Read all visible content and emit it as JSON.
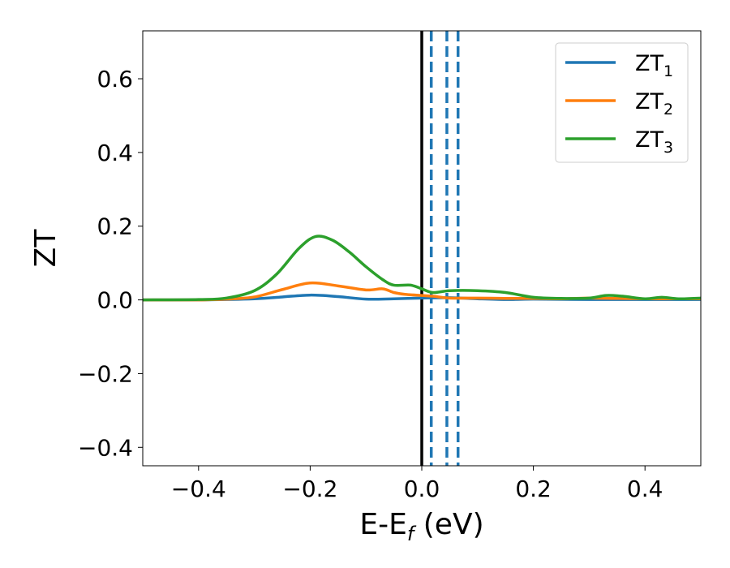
{
  "chart_data": {
    "type": "line",
    "xlabel": {
      "main": "E-E",
      "sub": "f",
      "suffix": " (eV)"
    },
    "ylabel": "ZT",
    "xlim": [
      -0.5,
      0.5
    ],
    "ylim": [
      -0.45,
      0.73
    ],
    "xticks": [
      -0.4,
      -0.2,
      0.0,
      0.2,
      0.4
    ],
    "xtick_labels": [
      "−0.4",
      "−0.2",
      "0.0",
      "0.2",
      "0.4"
    ],
    "yticks": [
      -0.4,
      -0.2,
      0.0,
      0.2,
      0.4,
      0.6
    ],
    "ytick_labels": [
      "−0.4",
      "−0.2",
      "0.0",
      "0.2",
      "0.4",
      "0.6"
    ],
    "grid": false,
    "legend_position": "top-right",
    "vlines": [
      {
        "x": 0.0,
        "style": "solid",
        "color": "#000000"
      },
      {
        "x": 0.017,
        "style": "dashed",
        "color": "#1f77b4"
      },
      {
        "x": 0.045,
        "style": "dashed",
        "color": "#1f77b4"
      },
      {
        "x": 0.065,
        "style": "dashed",
        "color": "#1f77b4"
      }
    ],
    "series": [
      {
        "name": "ZT",
        "name_sub": "1",
        "color": "#1f77b4",
        "x": [
          -0.5,
          -0.4,
          -0.3,
          -0.25,
          -0.2,
          -0.15,
          -0.1,
          -0.05,
          0.0,
          0.05,
          0.1,
          0.15,
          0.2,
          0.3,
          0.4,
          0.5
        ],
        "y": [
          0.0,
          0.0,
          0.003,
          0.008,
          0.013,
          0.009,
          0.002,
          0.003,
          0.005,
          0.006,
          0.003,
          0.001,
          0.002,
          0.001,
          0.001,
          0.001
        ]
      },
      {
        "name": "ZT",
        "name_sub": "2",
        "color": "#ff7f0e",
        "x": [
          -0.5,
          -0.4,
          -0.35,
          -0.3,
          -0.25,
          -0.2,
          -0.15,
          -0.1,
          -0.07,
          -0.05,
          -0.03,
          0.0,
          0.02,
          0.05,
          0.1,
          0.15,
          0.2,
          0.25,
          0.3,
          0.35,
          0.4,
          0.45,
          0.5
        ],
        "y": [
          0.0,
          0.0,
          0.002,
          0.008,
          0.028,
          0.046,
          0.038,
          0.027,
          0.03,
          0.02,
          0.015,
          0.012,
          0.01,
          0.005,
          0.005,
          0.004,
          0.004,
          0.003,
          0.005,
          0.004,
          0.003,
          0.003,
          0.003
        ]
      },
      {
        "name": "ZT",
        "name_sub": "3",
        "color": "#2ca02c",
        "x": [
          -0.5,
          -0.4,
          -0.35,
          -0.3,
          -0.26,
          -0.22,
          -0.19,
          -0.16,
          -0.13,
          -0.1,
          -0.07,
          -0.05,
          -0.02,
          0.0,
          0.02,
          0.05,
          0.1,
          0.15,
          0.2,
          0.25,
          0.3,
          0.33,
          0.36,
          0.4,
          0.43,
          0.46,
          0.5
        ],
        "y": [
          0.0,
          0.001,
          0.005,
          0.025,
          0.07,
          0.14,
          0.172,
          0.162,
          0.13,
          0.09,
          0.055,
          0.04,
          0.04,
          0.03,
          0.02,
          0.025,
          0.025,
          0.02,
          0.007,
          0.004,
          0.005,
          0.012,
          0.01,
          0.003,
          0.007,
          0.003,
          0.005
        ]
      }
    ]
  }
}
